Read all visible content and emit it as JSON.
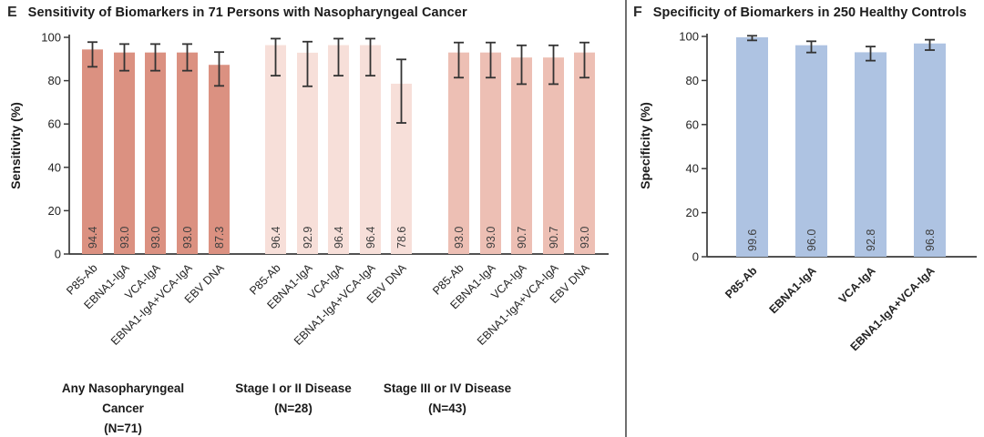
{
  "panels": {
    "e": {
      "letter": "E",
      "title": "Sensitivity of Biomarkers in 71 Persons with Nasopharyngeal Cancer"
    },
    "f": {
      "letter": "F",
      "title": "Specificity of Biomarkers in 250 Healthy Controls"
    }
  },
  "colors": {
    "group_any_cancer": "#DB9181",
    "group_stage_1_2": "#F7DFD9",
    "group_stage_3_4": "#EDBFB4",
    "healthy_controls": "#AEC3E2",
    "axis": "#3A3A3A",
    "error_bar": "#333333",
    "value_text": "#3F3F3F",
    "tick_text": "#232323",
    "divider": "#6F6F6F"
  },
  "chart_data": [
    {
      "panel": "E",
      "type": "bar",
      "title": "Sensitivity of Biomarkers in 71 Persons with Nasopharyngeal Cancer",
      "ylabel": "Sensitivity (%)",
      "ylim": [
        0,
        100
      ],
      "yticks": [
        0,
        20,
        40,
        60,
        80,
        100
      ],
      "grid": false,
      "legend": "none",
      "groups": [
        {
          "caption_lines": [
            "Any Nasopharyngeal",
            "Cancer",
            "(N=71)"
          ],
          "color": "#DB9181",
          "bars": [
            {
              "label": "P85-Ab",
              "value": 94.4,
              "ci_low": 86.4,
              "ci_high": 97.8
            },
            {
              "label": "EBNA1-IgA",
              "value": 93.0,
              "ci_low": 84.6,
              "ci_high": 96.9
            },
            {
              "label": "VCA-IgA",
              "value": 93.0,
              "ci_low": 84.6,
              "ci_high": 96.9
            },
            {
              "label": "EBNA1-IgA+VCA-IgA",
              "value": 93.0,
              "ci_low": 84.6,
              "ci_high": 96.9
            },
            {
              "label": "EBV DNA",
              "value": 87.3,
              "ci_low": 77.6,
              "ci_high": 93.2
            }
          ]
        },
        {
          "caption_lines": [
            "Stage I or II Disease",
            "(N=28)"
          ],
          "color": "#F7DFD9",
          "bars": [
            {
              "label": "P85-Ab",
              "value": 96.4,
              "ci_low": 82.3,
              "ci_high": 99.4
            },
            {
              "label": "EBNA1-IgA",
              "value": 92.9,
              "ci_low": 77.4,
              "ci_high": 98.0
            },
            {
              "label": "VCA-IgA",
              "value": 96.4,
              "ci_low": 82.3,
              "ci_high": 99.4
            },
            {
              "label": "EBNA1-IgA+VCA-IgA",
              "value": 96.4,
              "ci_low": 82.3,
              "ci_high": 99.4
            },
            {
              "label": "EBV DNA",
              "value": 78.6,
              "ci_low": 60.5,
              "ci_high": 89.8
            }
          ]
        },
        {
          "caption_lines": [
            "Stage III or IV Disease",
            "(N=43)"
          ],
          "color": "#EDBFB4",
          "bars": [
            {
              "label": "P85-Ab",
              "value": 93.0,
              "ci_low": 81.4,
              "ci_high": 97.6
            },
            {
              "label": "EBNA1-IgA",
              "value": 93.0,
              "ci_low": 81.4,
              "ci_high": 97.6
            },
            {
              "label": "VCA-IgA",
              "value": 90.7,
              "ci_low": 78.4,
              "ci_high": 96.3
            },
            {
              "label": "EBNA1-IgA+VCA-IgA",
              "value": 90.7,
              "ci_low": 78.4,
              "ci_high": 96.3
            },
            {
              "label": "EBV DNA",
              "value": 93.0,
              "ci_low": 81.4,
              "ci_high": 97.6
            }
          ]
        }
      ]
    },
    {
      "panel": "F",
      "type": "bar",
      "title": "Specificity of Biomarkers in 250 Healthy Controls",
      "ylabel": "Specificity (%)",
      "ylim": [
        0,
        100
      ],
      "yticks": [
        0,
        20,
        40,
        60,
        80,
        100
      ],
      "grid": false,
      "legend": "none",
      "groups": [
        {
          "caption_lines": [],
          "color": "#AEC3E2",
          "bars": [
            {
              "label": "P85-Ab",
              "value": 99.6,
              "ci_low": 98.2,
              "ci_high": 100.3
            },
            {
              "label": "EBNA1-IgA",
              "value": 96.0,
              "ci_low": 92.7,
              "ci_high": 97.8
            },
            {
              "label": "VCA-IgA",
              "value": 92.8,
              "ci_low": 89.0,
              "ci_high": 95.4
            },
            {
              "label": "EBNA1-IgA+VCA-IgA",
              "value": 96.8,
              "ci_low": 93.8,
              "ci_high": 98.5
            }
          ]
        }
      ]
    }
  ]
}
